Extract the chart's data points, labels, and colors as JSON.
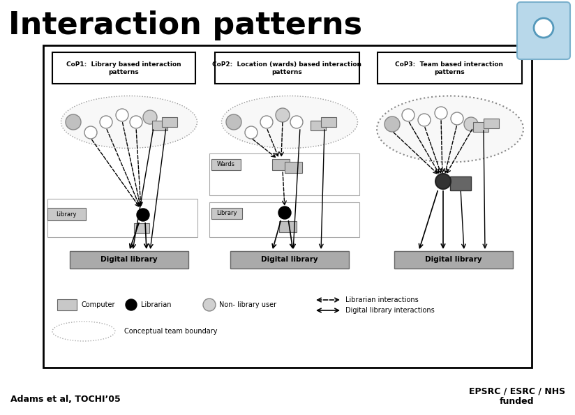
{
  "title": "Interaction patterns",
  "title_fontsize": 32,
  "bg_color": "#ffffff",
  "footer_left": "Adams et al, TOCHI’05",
  "footer_right": "EPSRC / ESRC / NHS\nfunded",
  "cop1_title": "CoP1:  Library based interaction\npatterns",
  "cop2_title": "CoP2:  Location (wards) based interaction\npatterns",
  "cop3_title": "CoP3:  Team based interaction\npatterns",
  "legend_computer": "Computer",
  "legend_librarian": "Librarian",
  "legend_nonlib": "Non- library user",
  "legend_boundary": "Conceptual team boundary",
  "legend_lib_int": "Librarian interactions",
  "legend_dig_int": "Digital library interactions",
  "digital_library_label": "Digital library",
  "library_label": "Library",
  "wards_label": "Wards"
}
